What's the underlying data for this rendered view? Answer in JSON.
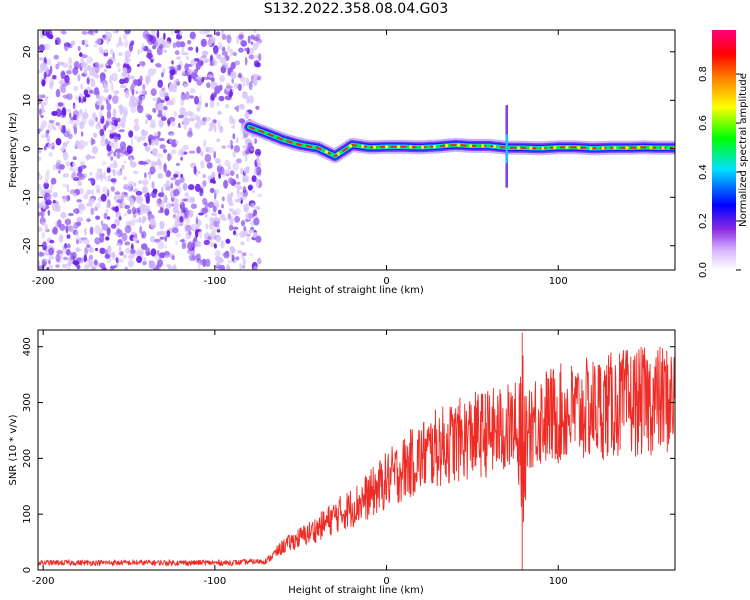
{
  "title": "S132.2022.358.08.04.G03",
  "colors": {
    "noise": "#7a3df0",
    "trace_red": "#e8282a",
    "snr_line": "#ee2b25",
    "axis": "#000000",
    "grid": "#d0d0d0"
  },
  "chart_data": [
    {
      "type": "heatmap",
      "xlabel": "Height of straight line (km)",
      "ylabel": "Frequency (Hz)",
      "xlim": [
        -203,
        168
      ],
      "ylim": [
        -25,
        24.5
      ],
      "xticks": [
        -200,
        -100,
        0,
        100
      ],
      "yticks": [
        -20,
        -10,
        0,
        10,
        20
      ],
      "grid": false,
      "colorbar": {
        "label": "Normalized spectral amplitude",
        "range": [
          0,
          0.98
        ],
        "ticks": [
          0.0,
          0.2,
          0.4,
          0.6,
          0.8
        ],
        "colormap": [
          "#ffffff",
          "#8a2be2",
          "#0000ff",
          "#00e0ff",
          "#00ff00",
          "#ffff00",
          "#ff8000",
          "#ff0000",
          "#ff0080"
        ]
      },
      "noise_region_x": [
        -203,
        -77
      ],
      "trace": {
        "x": [
          -80,
          -70,
          -60,
          -50,
          -40,
          -30,
          -20,
          -10,
          0,
          10,
          20,
          30,
          40,
          50,
          60,
          70,
          80,
          90,
          100,
          110,
          120,
          130,
          140,
          150,
          160,
          168
        ],
        "freq": [
          4.5,
          3.2,
          1.8,
          0.8,
          0.2,
          -1.5,
          0.8,
          0.3,
          0.4,
          0.4,
          0.3,
          0.5,
          0.8,
          0.6,
          0.6,
          0.2,
          0.2,
          0.1,
          0.3,
          0.3,
          0.1,
          0.2,
          0.2,
          0.3,
          0.2,
          0.2
        ]
      },
      "spike_x": 70
    },
    {
      "type": "line",
      "xlabel": "Height of straight line (km)",
      "ylabel": "SNR (10 * v/v)",
      "xlim": [
        -203,
        168
      ],
      "ylim": [
        0,
        430
      ],
      "xticks": [
        -200,
        -100,
        0,
        100
      ],
      "yticks": [
        0,
        100,
        200,
        300,
        400
      ],
      "grid": false,
      "envelope": {
        "x": [
          -203,
          -90,
          -70,
          -60,
          -50,
          -40,
          -30,
          -20,
          -10,
          0,
          10,
          20,
          30,
          40,
          50,
          60,
          70,
          80,
          90,
          100,
          110,
          120,
          130,
          140,
          150,
          160,
          168
        ],
        "y": [
          12,
          12,
          15,
          40,
          55,
          70,
          90,
          105,
          125,
          150,
          170,
          190,
          205,
          215,
          225,
          230,
          235,
          245,
          255,
          260,
          265,
          270,
          275,
          280,
          282,
          285,
          285
        ]
      },
      "spike": {
        "x": 79,
        "max": 425,
        "min": 0
      }
    }
  ]
}
